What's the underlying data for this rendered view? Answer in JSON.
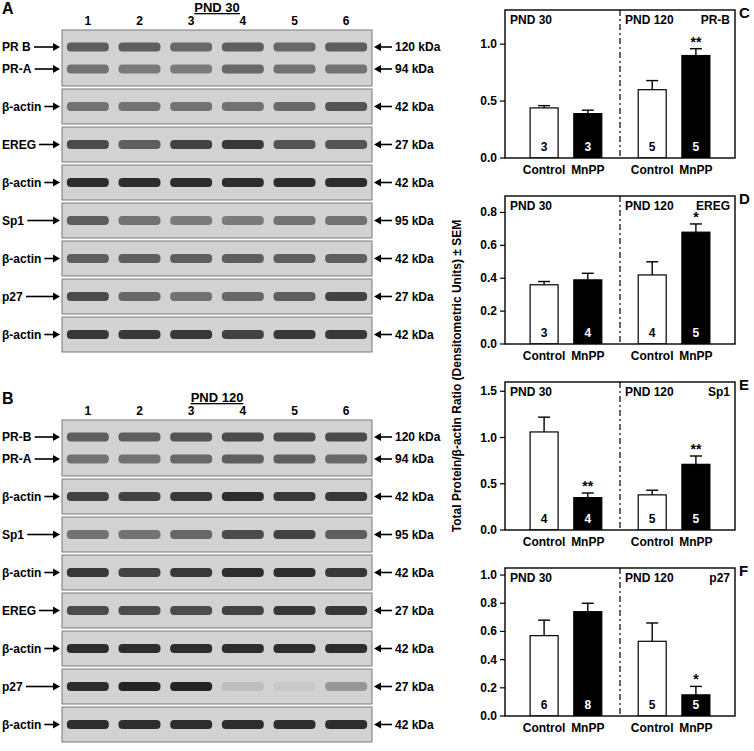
{
  "y_label": "Total Protein/β-actin Ratio (Densitometric Units) ± SEM",
  "blots": [
    {
      "letter": "A",
      "title": "PND 30",
      "lanes": [
        1,
        2,
        3,
        4,
        5,
        6
      ],
      "rows": [
        {
          "bands": [
            {
              "label": "PR B",
              "kda": "120 kDa",
              "intensity": [
                0.6,
                0.6,
                0.55,
                0.6,
                0.55,
                0.6
              ]
            },
            {
              "label": "PR-A",
              "kda": "94 kDa",
              "intensity": [
                0.5,
                0.45,
                0.45,
                0.55,
                0.5,
                0.5
              ]
            }
          ]
        },
        {
          "bands": [
            {
              "label": "β-actin",
              "kda": "42 kDa",
              "intensity": [
                0.5,
                0.5,
                0.5,
                0.5,
                0.55,
                0.65
              ]
            }
          ]
        },
        {
          "bands": [
            {
              "label": "EREG",
              "kda": "27 kDa",
              "intensity": [
                0.7,
                0.6,
                0.75,
                0.8,
                0.65,
                0.65
              ]
            }
          ]
        },
        {
          "bands": [
            {
              "label": "β-actin",
              "kda": "42 kDa",
              "intensity": [
                0.85,
                0.85,
                0.85,
                0.85,
                0.85,
                0.85
              ]
            }
          ]
        },
        {
          "bands": [
            {
              "label": "Sp1",
              "kda": "95 kDa",
              "intensity": [
                0.6,
                0.5,
                0.45,
                0.45,
                0.5,
                0.5
              ]
            }
          ]
        },
        {
          "bands": [
            {
              "label": "β-actin",
              "kda": "42 kDa",
              "intensity": [
                0.6,
                0.6,
                0.6,
                0.6,
                0.6,
                0.6
              ]
            }
          ]
        },
        {
          "bands": [
            {
              "label": "p27",
              "kda": "27 kDa",
              "intensity": [
                0.7,
                0.55,
                0.5,
                0.55,
                0.6,
                0.75
              ]
            }
          ]
        },
        {
          "bands": [
            {
              "label": "β-actin",
              "kda": "42 kDa",
              "intensity": [
                0.8,
                0.8,
                0.8,
                0.75,
                0.8,
                0.8
              ]
            }
          ]
        }
      ]
    },
    {
      "letter": "B",
      "title": "PND 120",
      "lanes": [
        1,
        2,
        3,
        4,
        5,
        6
      ],
      "rows": [
        {
          "bands": [
            {
              "label": "PR-B",
              "kda": "120 kDa",
              "intensity": [
                0.6,
                0.6,
                0.65,
                0.7,
                0.7,
                0.7
              ]
            },
            {
              "label": "PR-A",
              "kda": "94 kDa",
              "intensity": [
                0.5,
                0.5,
                0.55,
                0.6,
                0.6,
                0.55
              ]
            }
          ]
        },
        {
          "bands": [
            {
              "label": "β-actin",
              "kda": "42 kDa",
              "intensity": [
                0.75,
                0.75,
                0.8,
                0.85,
                0.8,
                0.8
              ]
            }
          ]
        },
        {
          "bands": [
            {
              "label": "Sp1",
              "kda": "95 kDa",
              "intensity": [
                0.5,
                0.5,
                0.55,
                0.7,
                0.75,
                0.6
              ]
            }
          ]
        },
        {
          "bands": [
            {
              "label": "β-actin",
              "kda": "42 kDa",
              "intensity": [
                0.8,
                0.75,
                0.8,
                0.85,
                0.85,
                0.8
              ]
            }
          ]
        },
        {
          "bands": [
            {
              "label": "EREG",
              "kda": "27 kDa",
              "intensity": [
                0.7,
                0.7,
                0.7,
                0.75,
                0.8,
                0.8
              ]
            }
          ]
        },
        {
          "bands": [
            {
              "label": "β-actin",
              "kda": "42 kDa",
              "intensity": [
                0.85,
                0.85,
                0.85,
                0.85,
                0.85,
                0.85
              ]
            }
          ]
        },
        {
          "bands": [
            {
              "label": "p27",
              "kda": "27 kDa",
              "intensity": [
                0.85,
                0.9,
                0.9,
                0.1,
                0.05,
                0.3
              ]
            }
          ]
        },
        {
          "bands": [
            {
              "label": "β-actin",
              "kda": "42 kDa",
              "intensity": [
                0.85,
                0.85,
                0.85,
                0.85,
                0.85,
                0.85
              ]
            }
          ]
        }
      ]
    }
  ],
  "chart_data": [
    {
      "type": "bar",
      "letter": "C",
      "title": "PR-B",
      "group_labels": [
        "PND 30",
        "PND 120"
      ],
      "categories": [
        "Control",
        "MnPP",
        "Control",
        "MnPP"
      ],
      "values": [
        0.44,
        0.39,
        0.6,
        0.9
      ],
      "errors": [
        0.02,
        0.03,
        0.08,
        0.06
      ],
      "n": [
        3,
        3,
        5,
        5
      ],
      "significance": [
        null,
        null,
        null,
        "**"
      ],
      "colors": [
        "#ffffff",
        "#000000",
        "#ffffff",
        "#000000"
      ],
      "ylim": [
        0,
        1.3
      ],
      "yticks": [
        {
          "value": 0,
          "label": "0.0"
        },
        {
          "value": 0.5,
          "label": "0.5"
        },
        {
          "value": 1,
          "label": "1.0"
        }
      ]
    },
    {
      "type": "bar",
      "letter": "D",
      "title": "EREG",
      "group_labels": [
        "PND 30",
        "PND 120"
      ],
      "categories": [
        "Control",
        "MnPP",
        "Control",
        "MnPP"
      ],
      "values": [
        0.36,
        0.39,
        0.42,
        0.68
      ],
      "errors": [
        0.02,
        0.04,
        0.08,
        0.05
      ],
      "n": [
        3,
        4,
        4,
        5
      ],
      "significance": [
        null,
        null,
        null,
        "*"
      ],
      "colors": [
        "#ffffff",
        "#000000",
        "#ffffff",
        "#000000"
      ],
      "ylim": [
        0,
        0.9
      ],
      "yticks": [
        {
          "value": 0,
          "label": "0.0"
        },
        0.2,
        0.4,
        0.6,
        0.8
      ]
    },
    {
      "type": "bar",
      "letter": "E",
      "title": "Sp1",
      "group_labels": [
        "PND 30",
        "PND 120"
      ],
      "categories": [
        "Control",
        "MnPP",
        "Control",
        "MnPP"
      ],
      "values": [
        1.06,
        0.35,
        0.38,
        0.71
      ],
      "errors": [
        0.16,
        0.05,
        0.05,
        0.09
      ],
      "n": [
        4,
        4,
        5,
        5
      ],
      "significance": [
        null,
        "**",
        null,
        "**"
      ],
      "colors": [
        "#ffffff",
        "#000000",
        "#ffffff",
        "#000000"
      ],
      "ylim": [
        0,
        1.6
      ],
      "yticks": [
        {
          "value": 0,
          "label": "0.0"
        },
        0.5,
        {
          "value": 1,
          "label": "1.0"
        },
        1.5
      ]
    },
    {
      "type": "bar",
      "letter": "F",
      "title": "p27",
      "group_labels": [
        "PND 30",
        "PND 120"
      ],
      "categories": [
        "Control",
        "MnPP",
        "Control",
        "MnPP"
      ],
      "values": [
        0.57,
        0.74,
        0.53,
        0.15
      ],
      "errors": [
        0.11,
        0.06,
        0.13,
        0.06
      ],
      "n": [
        6,
        8,
        5,
        5
      ],
      "significance": [
        null,
        null,
        null,
        "*"
      ],
      "colors": [
        "#ffffff",
        "#000000",
        "#ffffff",
        "#000000"
      ],
      "ylim": [
        0,
        1.05
      ],
      "yticks": [
        {
          "value": 0,
          "label": "0.0"
        },
        0.2,
        0.4,
        0.6,
        0.8,
        {
          "value": 1,
          "label": "1.0"
        }
      ]
    }
  ]
}
